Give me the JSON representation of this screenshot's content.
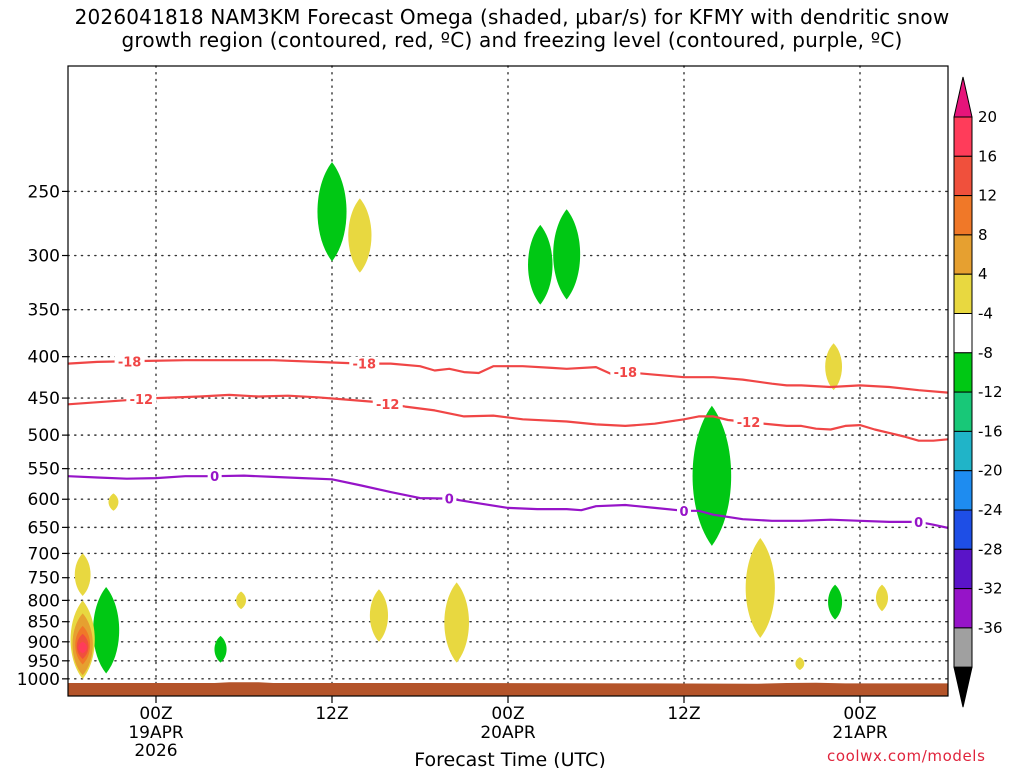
{
  "chart_data": {
    "type": "heatmap",
    "title_line1": "2026041818 NAM3KM Forecast Omega (shaded, μbar/s) for KFMY with dendritic snow",
    "title_line2": "growth region (contoured, red, ºC) and freezing level (contoured, purple, ºC)",
    "xlabel": "Forecast Time (UTC)",
    "ylabel": "",
    "credit": "coolwx.com/models",
    "x_range_hours": [
      0,
      60
    ],
    "y_axis": {
      "scale": "log-pressure",
      "range_mb": [
        1050,
        175
      ],
      "ticks": [
        250,
        300,
        350,
        400,
        450,
        500,
        550,
        600,
        650,
        700,
        750,
        800,
        850,
        900,
        950,
        1000
      ],
      "gridlines": true
    },
    "x_ticks": [
      {
        "hour": 6,
        "label": "00Z",
        "sublabel": "19APR",
        "sublabel2": "2026"
      },
      {
        "hour": 18,
        "label": "12Z",
        "sublabel": "",
        "sublabel2": ""
      },
      {
        "hour": 30,
        "label": "00Z",
        "sublabel": "20APR",
        "sublabel2": ""
      },
      {
        "hour": 42,
        "label": "12Z",
        "sublabel": "",
        "sublabel2": ""
      },
      {
        "hour": 54,
        "label": "00Z",
        "sublabel": "21APR",
        "sublabel2": ""
      }
    ],
    "x_gridlines_hours": [
      6,
      18,
      30,
      42,
      54
    ],
    "colorbar": {
      "units": "μbar/s",
      "levels": [
        20,
        16,
        12,
        8,
        4,
        -4,
        -8,
        -12,
        -16,
        -20,
        -24,
        -28,
        -32,
        -36
      ],
      "colors": [
        "#ff3c5a",
        "#f0503c",
        "#f07828",
        "#e6a030",
        "#e8d840",
        "#ffffff",
        "#00c814",
        "#18c878",
        "#20b4c8",
        "#1e8cf0",
        "#1e4ee6",
        "#5a14c8",
        "#9614c8",
        "#a0a0a0"
      ],
      "top_arrow_color": "#e6147a",
      "bottom_arrow_color": "#000000"
    },
    "contours": [
      {
        "name": "-18C isotherm",
        "color": "#f04646",
        "label": "-18",
        "label_hours": [
          4.2,
          20.2,
          38.0
        ],
        "points": [
          [
            0,
            408
          ],
          [
            2,
            406
          ],
          [
            5,
            405
          ],
          [
            8,
            404
          ],
          [
            11,
            404
          ],
          [
            14,
            404
          ],
          [
            17,
            406
          ],
          [
            20,
            408
          ],
          [
            22,
            408
          ],
          [
            24,
            411
          ],
          [
            25,
            416
          ],
          [
            26,
            414
          ],
          [
            27,
            418
          ],
          [
            28,
            419
          ],
          [
            29,
            411
          ],
          [
            31,
            411
          ],
          [
            33,
            413
          ],
          [
            34,
            414
          ],
          [
            36,
            412
          ],
          [
            37,
            420
          ],
          [
            38,
            418
          ],
          [
            40,
            421
          ],
          [
            42,
            424
          ],
          [
            44,
            424
          ],
          [
            46,
            427
          ],
          [
            48,
            432
          ],
          [
            49,
            434
          ],
          [
            50,
            434
          ],
          [
            52,
            436
          ],
          [
            54,
            434
          ],
          [
            56,
            436
          ],
          [
            58,
            440
          ],
          [
            60,
            443
          ]
        ]
      },
      {
        "name": "-12C isotherm",
        "color": "#f04646",
        "label": "-12",
        "label_hours": [
          5.0,
          21.8,
          46.4
        ],
        "points": [
          [
            0,
            458
          ],
          [
            3,
            454
          ],
          [
            6,
            450
          ],
          [
            9,
            448
          ],
          [
            11,
            446
          ],
          [
            13,
            448
          ],
          [
            15,
            447
          ],
          [
            17,
            449
          ],
          [
            19,
            452
          ],
          [
            21,
            455
          ],
          [
            23,
            461
          ],
          [
            25,
            466
          ],
          [
            27,
            474
          ],
          [
            29,
            473
          ],
          [
            31,
            478
          ],
          [
            34,
            481
          ],
          [
            36,
            485
          ],
          [
            38,
            487
          ],
          [
            40,
            484
          ],
          [
            42,
            478
          ],
          [
            43,
            474
          ],
          [
            44,
            474
          ],
          [
            45,
            479
          ],
          [
            47,
            483
          ],
          [
            49,
            487
          ],
          [
            50,
            487
          ],
          [
            51,
            491
          ],
          [
            52,
            492
          ],
          [
            53,
            487
          ],
          [
            54,
            486
          ],
          [
            55,
            492
          ],
          [
            57,
            502
          ],
          [
            58,
            508
          ],
          [
            59,
            508
          ],
          [
            60,
            506
          ]
        ]
      },
      {
        "name": "0C freezing level",
        "color": "#9614c8",
        "label": "0",
        "label_hours": [
          10.0,
          26.0,
          42.0,
          58.0
        ],
        "points": [
          [
            0,
            562
          ],
          [
            2,
            564
          ],
          [
            4,
            566
          ],
          [
            6,
            565
          ],
          [
            8,
            562
          ],
          [
            10,
            562
          ],
          [
            12,
            561
          ],
          [
            14,
            563
          ],
          [
            16,
            565
          ],
          [
            18,
            567
          ],
          [
            20,
            577
          ],
          [
            22,
            588
          ],
          [
            24,
            598
          ],
          [
            26,
            599
          ],
          [
            28,
            607
          ],
          [
            30,
            615
          ],
          [
            32,
            617
          ],
          [
            34,
            617
          ],
          [
            35,
            619
          ],
          [
            36,
            612
          ],
          [
            38,
            610
          ],
          [
            40,
            615
          ],
          [
            42,
            620
          ],
          [
            43,
            620
          ],
          [
            44,
            627
          ],
          [
            46,
            635
          ],
          [
            48,
            638
          ],
          [
            50,
            638
          ],
          [
            52,
            636
          ],
          [
            54,
            638
          ],
          [
            56,
            640
          ],
          [
            57,
            640
          ],
          [
            58,
            640
          ],
          [
            59,
            645
          ],
          [
            60,
            651
          ]
        ]
      }
    ],
    "shaded_regions": [
      {
        "polarity": "rising",
        "level": "-8",
        "hour": 18.0,
        "p_top": 230,
        "p_bottom": 305
      },
      {
        "polarity": "sinking",
        "level": "4",
        "hour": 19.9,
        "p_top": 255,
        "p_bottom": 315
      },
      {
        "polarity": "rising",
        "level": "-8",
        "hour": 32.2,
        "p_top": 275,
        "p_bottom": 345
      },
      {
        "polarity": "rising",
        "level": "-8",
        "hour": 34.0,
        "p_top": 263,
        "p_bottom": 340
      },
      {
        "polarity": "sinking",
        "level": "4",
        "hour": 52.2,
        "p_top": 385,
        "p_bottom": 440
      },
      {
        "polarity": "rising",
        "level": "-8",
        "hour": 43.9,
        "p_top": 460,
        "p_bottom": 685
      },
      {
        "polarity": "sinking",
        "level": "4",
        "hour": 3.1,
        "p_top": 590,
        "p_bottom": 620
      },
      {
        "polarity": "sinking",
        "level": "4",
        "hour": 1.0,
        "p_top": 700,
        "p_bottom": 790
      },
      {
        "polarity": "rising",
        "level": "-8",
        "hour": 2.6,
        "p_top": 770,
        "p_bottom": 985
      },
      {
        "polarity": "sinking",
        "level": "4",
        "hour": 1.0,
        "p_top": 800,
        "p_bottom": 1000
      },
      {
        "polarity": "sinking",
        "level": "8",
        "hour": 1.0,
        "p_top": 830,
        "p_bottom": 990
      },
      {
        "polarity": "sinking",
        "level": "12",
        "hour": 1.0,
        "p_top": 860,
        "p_bottom": 960
      },
      {
        "polarity": "sinking",
        "level": "16",
        "hour": 1.0,
        "p_top": 880,
        "p_bottom": 945
      },
      {
        "polarity": "sinking",
        "level": "20",
        "hour": 1.0,
        "p_top": 900,
        "p_bottom": 930
      },
      {
        "polarity": "rising",
        "level": "-8",
        "hour": 10.4,
        "p_top": 885,
        "p_bottom": 955
      },
      {
        "polarity": "sinking",
        "level": "4",
        "hour": 11.8,
        "p_top": 780,
        "p_bottom": 820
      },
      {
        "polarity": "sinking",
        "level": "4",
        "hour": 21.2,
        "p_top": 775,
        "p_bottom": 900
      },
      {
        "polarity": "sinking",
        "level": "4",
        "hour": 26.5,
        "p_top": 760,
        "p_bottom": 955
      },
      {
        "polarity": "sinking",
        "level": "4",
        "hour": 47.2,
        "p_top": 670,
        "p_bottom": 890
      },
      {
        "polarity": "sinking",
        "level": "4",
        "hour": 49.9,
        "p_top": 940,
        "p_bottom": 975
      },
      {
        "polarity": "rising",
        "level": "-8",
        "hour": 52.3,
        "p_top": 765,
        "p_bottom": 845
      },
      {
        "polarity": "sinking",
        "level": "4",
        "hour": 55.5,
        "p_top": 765,
        "p_bottom": 825
      }
    ],
    "terrain_fill_color": "#b4542a"
  }
}
